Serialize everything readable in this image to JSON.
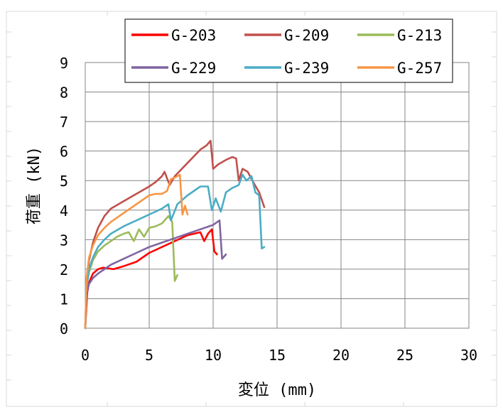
{
  "chart_data": {
    "type": "line",
    "title": "",
    "xlabel": "変位 (mm)",
    "ylabel": "荷重 (kN)",
    "xlim": [
      0,
      30
    ],
    "ylim": [
      0,
      9
    ],
    "xticks": [
      "0",
      "5",
      "10",
      "15",
      "20",
      "25",
      "30"
    ],
    "yticks": [
      "0",
      "1",
      "2",
      "3",
      "4",
      "5",
      "6",
      "7",
      "8",
      "9"
    ],
    "grid": true,
    "legend_position": "top",
    "series": [
      {
        "name": "G-203",
        "color": "#ff0000",
        "x": [
          0,
          0.15,
          0.3,
          0.6,
          1.0,
          1.4,
          2.2,
          3.0,
          4.0,
          5.0,
          6.0,
          7.0,
          8.0,
          9.0,
          9.3,
          9.6,
          9.9,
          10.1,
          10.3
        ],
        "y": [
          0,
          1.2,
          1.55,
          1.85,
          2.0,
          2.05,
          2.0,
          2.1,
          2.25,
          2.55,
          2.75,
          2.95,
          3.15,
          3.25,
          2.95,
          3.2,
          3.35,
          2.6,
          2.5
        ]
      },
      {
        "name": "G-209",
        "color": "#c0504d",
        "x": [
          0,
          0.1,
          0.3,
          0.6,
          1.0,
          1.5,
          2.0,
          3.0,
          4.0,
          5.0,
          5.5,
          6.0,
          6.2,
          6.6,
          7.0,
          8.0,
          9.0,
          9.5,
          9.8,
          10.0,
          10.4,
          11.0,
          11.5,
          11.8,
          12.0,
          12.3,
          12.7,
          13.2,
          13.6,
          14.0
        ],
        "y": [
          0,
          1.5,
          2.3,
          2.9,
          3.4,
          3.8,
          4.05,
          4.3,
          4.55,
          4.8,
          4.95,
          5.15,
          5.3,
          4.85,
          5.15,
          5.6,
          6.05,
          6.2,
          6.35,
          5.4,
          5.55,
          5.7,
          5.8,
          5.75,
          5.0,
          5.4,
          5.3,
          4.9,
          4.6,
          4.1
        ]
      },
      {
        "name": "G-213",
        "color": "#9bbb59",
        "x": [
          0,
          0.1,
          0.3,
          0.6,
          1.0,
          1.5,
          2.0,
          2.5,
          3.0,
          3.4,
          3.8,
          4.2,
          4.6,
          5.0,
          5.5,
          6.0,
          6.5,
          6.8,
          7.0,
          7.2
        ],
        "y": [
          0,
          1.4,
          1.9,
          2.3,
          2.6,
          2.8,
          2.95,
          3.1,
          3.2,
          3.25,
          2.95,
          3.35,
          3.1,
          3.4,
          3.45,
          3.55,
          3.8,
          3.6,
          1.6,
          1.8
        ]
      },
      {
        "name": "G-229",
        "color": "#8064a2",
        "x": [
          0,
          0.1,
          0.3,
          0.6,
          1.0,
          1.5,
          2.0,
          3.0,
          4.0,
          5.0,
          6.0,
          7.0,
          8.0,
          9.0,
          10.0,
          10.5,
          10.7,
          11.0
        ],
        "y": [
          0,
          1.2,
          1.5,
          1.7,
          1.85,
          2.0,
          2.15,
          2.35,
          2.55,
          2.75,
          2.9,
          3.05,
          3.2,
          3.35,
          3.5,
          3.65,
          2.35,
          2.5
        ]
      },
      {
        "name": "G-239",
        "color": "#4bacc6",
        "x": [
          0,
          0.1,
          0.3,
          0.6,
          1.0,
          1.5,
          2.0,
          3.0,
          4.0,
          5.0,
          6.0,
          6.5,
          6.7,
          7.2,
          8.0,
          9.0,
          9.6,
          9.9,
          10.2,
          10.6,
          11.0,
          11.5,
          12.0,
          12.3,
          12.6,
          13.0,
          13.3,
          13.6,
          13.8,
          14.0
        ],
        "y": [
          0,
          1.4,
          2.0,
          2.4,
          2.75,
          3.0,
          3.2,
          3.45,
          3.65,
          3.85,
          4.05,
          4.2,
          3.65,
          4.2,
          4.5,
          4.8,
          4.8,
          4.0,
          4.4,
          3.95,
          4.6,
          4.75,
          4.85,
          5.2,
          5.0,
          5.15,
          4.6,
          4.5,
          2.7,
          2.75
        ]
      },
      {
        "name": "G-257",
        "color": "#f79646",
        "x": [
          0,
          0.1,
          0.3,
          0.6,
          1.0,
          1.5,
          2.0,
          3.0,
          4.0,
          5.0,
          5.5,
          6.0,
          6.4,
          6.7,
          7.0,
          7.4,
          7.6,
          7.8,
          8.0
        ],
        "y": [
          0,
          1.7,
          2.4,
          2.8,
          3.15,
          3.4,
          3.6,
          3.9,
          4.2,
          4.5,
          4.55,
          4.55,
          4.65,
          5.05,
          5.1,
          5.2,
          3.85,
          4.15,
          3.85
        ]
      }
    ]
  }
}
